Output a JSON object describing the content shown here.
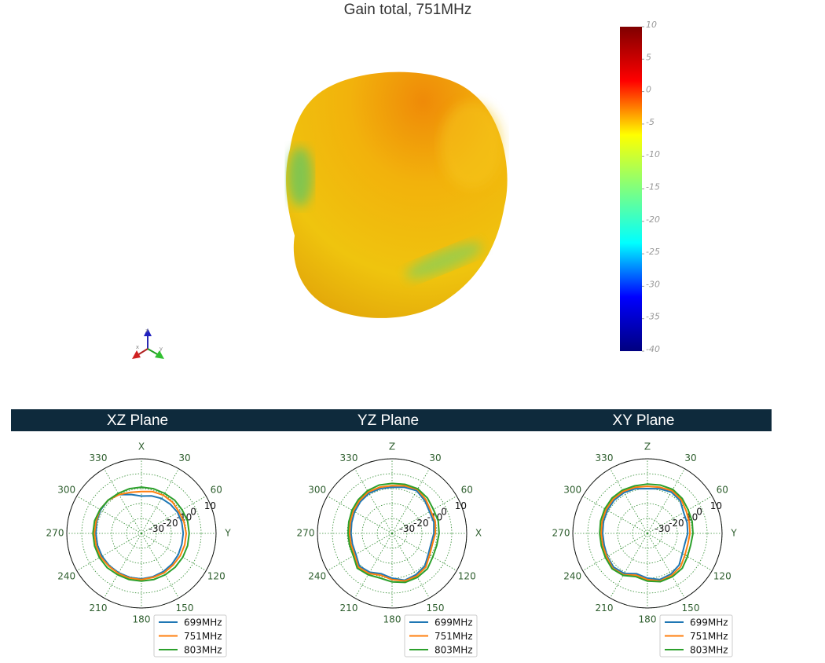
{
  "chart_data": [
    {
      "type": "colorbar",
      "title": "Gain total, 751MHz",
      "ylim": [
        -40,
        10
      ],
      "yticks": [
        10,
        5,
        0,
        -5,
        -10,
        -15,
        -20,
        -25,
        -30,
        -35,
        -40
      ],
      "colorscale": [
        "#00007f",
        "#0000ff",
        "#00ffff",
        "#7fff7f",
        "#ffff00",
        "#ff0000",
        "#7f0000"
      ],
      "axes_icon": [
        "x",
        "y",
        "z"
      ]
    },
    {
      "type": "polar",
      "title": "XZ Plane",
      "theta": [
        0,
        15,
        30,
        45,
        60,
        75,
        90,
        105,
        120,
        135,
        150,
        165,
        180,
        195,
        210,
        225,
        240,
        255,
        270,
        285,
        300,
        315,
        330,
        345
      ],
      "thetaticks": [
        {
          "value": 0,
          "label": "X"
        },
        30,
        60,
        {
          "value": 90,
          "label": "Y"
        },
        120,
        150,
        180,
        210,
        240,
        270,
        300,
        330
      ],
      "rlim": [
        -40,
        10
      ],
      "rticks": [
        -30,
        -20,
        -10,
        0,
        10
      ],
      "series": [
        {
          "name": "699MHz",
          "color": "#1f77b4",
          "values": [
            -15,
            -14,
            -13,
            -12.5,
            -12,
            -12,
            -12,
            -12,
            -11.5,
            -11,
            -10.5,
            -10,
            -9.5,
            -9.5,
            -9.5,
            -9.5,
            -9.5,
            -9.5,
            -9.5,
            -9,
            -8.5,
            -8.5,
            -10,
            -13
          ]
        },
        {
          "name": "751MHz",
          "color": "#ff7f0e",
          "values": [
            -12,
            -11,
            -10.5,
            -10.5,
            -11,
            -10.5,
            -10,
            -10,
            -10,
            -10,
            -9.5,
            -9.5,
            -9,
            -9,
            -9,
            -9,
            -8.5,
            -8.5,
            -8.5,
            -8.5,
            -8,
            -8.5,
            -10,
            -11.5
          ]
        },
        {
          "name": "803MHz",
          "color": "#2ca02c",
          "values": [
            -9,
            -9,
            -9,
            -8.5,
            -8.5,
            -8,
            -8,
            -8,
            -8,
            -8,
            -8,
            -8,
            -8,
            -8,
            -8,
            -7.5,
            -7.5,
            -7.5,
            -7.5,
            -7.5,
            -8,
            -8.5,
            -9,
            -9
          ]
        }
      ]
    },
    {
      "type": "polar",
      "title": "YZ Plane",
      "theta": [
        0,
        15,
        30,
        45,
        60,
        75,
        90,
        105,
        120,
        135,
        150,
        165,
        180,
        195,
        210,
        225,
        240,
        255,
        270,
        285,
        300,
        315,
        330,
        345
      ],
      "thetaticks": [
        {
          "value": 0,
          "label": "Z"
        },
        30,
        60,
        {
          "value": 90,
          "label": "X"
        },
        120,
        150,
        180,
        210,
        240,
        270,
        300,
        330
      ],
      "rlim": [
        -40,
        10
      ],
      "rticks": [
        -30,
        -20,
        -10,
        0,
        10
      ],
      "series": [
        {
          "name": "699MHz",
          "color": "#1f77b4",
          "values": [
            -9,
            -8,
            -7,
            -9,
            -11,
            -11,
            -12,
            -13,
            -12,
            -9,
            -8,
            -7.5,
            -10,
            -12,
            -10,
            -9,
            -12,
            -12.5,
            -12.5,
            -12,
            -11,
            -10,
            -9,
            -9
          ]
        },
        {
          "name": "751MHz",
          "color": "#ff7f0e",
          "values": [
            -8,
            -7,
            -6,
            -8,
            -10,
            -10,
            -11,
            -12,
            -11,
            -8,
            -7,
            -7,
            -9,
            -11,
            -9,
            -8,
            -11,
            -11.5,
            -11.5,
            -11,
            -10,
            -9,
            -8,
            -8
          ]
        },
        {
          "name": "803MHz",
          "color": "#2ca02c",
          "values": [
            -6.5,
            -6,
            -5.5,
            -6.5,
            -8,
            -8,
            -8.5,
            -9,
            -8.5,
            -6.5,
            -6,
            -6,
            -7.5,
            -9,
            -8,
            -7,
            -10,
            -10.5,
            -10.5,
            -10,
            -9,
            -8,
            -7,
            -6.5
          ]
        }
      ]
    },
    {
      "type": "polar",
      "title": "XY Plane",
      "theta": [
        0,
        15,
        30,
        45,
        60,
        75,
        90,
        105,
        120,
        135,
        150,
        165,
        180,
        195,
        210,
        225,
        240,
        255,
        270,
        285,
        300,
        315,
        330,
        345
      ],
      "thetaticks": [
        {
          "value": 0,
          "label": "Z"
        },
        30,
        60,
        {
          "value": 90,
          "label": "Y"
        },
        120,
        150,
        180,
        210,
        240,
        270,
        300,
        330
      ],
      "rlim": [
        -40,
        10
      ],
      "rticks": [
        -30,
        -20,
        -10,
        0,
        10
      ],
      "series": [
        {
          "name": "699MHz",
          "color": "#1f77b4",
          "values": [
            -10,
            -9,
            -8,
            -9,
            -12,
            -12.5,
            -13,
            -14,
            -13,
            -10,
            -8.5,
            -8,
            -10,
            -12,
            -9,
            -8,
            -9,
            -10,
            -10,
            -9.5,
            -9,
            -8.5,
            -8.5,
            -9
          ]
        },
        {
          "name": "751MHz",
          "color": "#ff7f0e",
          "values": [
            -8.5,
            -8,
            -7,
            -8,
            -10,
            -11,
            -11.5,
            -12,
            -11,
            -8.5,
            -7.5,
            -7,
            -9,
            -11,
            -8,
            -7,
            -8.5,
            -9,
            -9,
            -8.5,
            -8,
            -7.5,
            -7.5,
            -8
          ]
        },
        {
          "name": "803MHz",
          "color": "#2ca02c",
          "values": [
            -7,
            -6.5,
            -6,
            -7,
            -8.5,
            -9,
            -9.5,
            -10,
            -9,
            -7,
            -6.5,
            -6.5,
            -8,
            -10,
            -7.5,
            -6.5,
            -7.5,
            -8,
            -8,
            -7.5,
            -7,
            -6.5,
            -6.5,
            -7
          ]
        }
      ]
    }
  ]
}
